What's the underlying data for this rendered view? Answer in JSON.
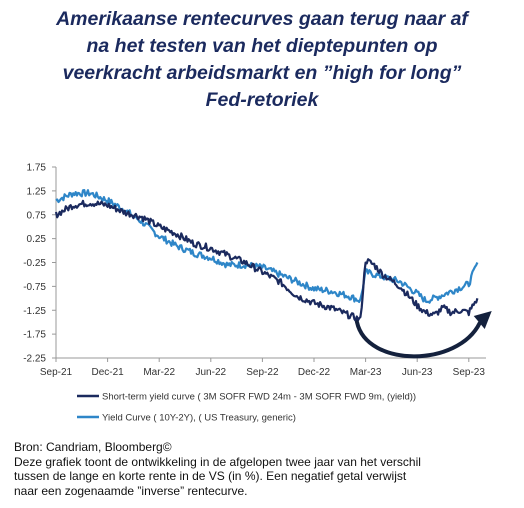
{
  "title_lines": [
    "Amerikaanse rentecurves gaan terug naar af",
    "na het testen van het dieptepunten op",
    "veerkracht arbeidsmarkt en ”high for long”",
    "Fed-retoriek"
  ],
  "footer": {
    "source": "Bron: Candriam, Bloomberg©",
    "lines": [
      "Deze grafiek toont de ontwikkeling in de afgelopen twee jaar van het verschil",
      "tussen de lange en korte rente in de VS (in %). Een negatief getal verwijst",
      "naar een zogenaamde ”inverse” rentecurve."
    ]
  },
  "colors": {
    "title": "#1b2a5e",
    "short_term": "#1b2a5e",
    "yield_curve": "#2e86c8",
    "arrow": "#14213d"
  },
  "chart_data": {
    "type": "line",
    "ylim": [
      -2.25,
      1.75
    ],
    "yticks": [
      "1.75",
      "1.25",
      "0.75",
      "0.25",
      "-0.25",
      "-0.75",
      "-1.25",
      "-1.75",
      "-2.25"
    ],
    "xticks": [
      "Sep-21",
      "Dec-21",
      "Mar-22",
      "Jun-22",
      "Sep-22",
      "Dec-22",
      "Mar-23",
      "Jun-23",
      "Sep-23"
    ],
    "x_months_range": [
      0,
      25
    ],
    "legend_position": "bottom",
    "grid": false,
    "annotation": "curved arrow from Mar-23 to Oct-23",
    "series": [
      {
        "name": "Short-term yield curve ( 3M SOFR FWD 24m - 3M SOFR FWD 9m, (yield))",
        "x": [
          0,
          1,
          2,
          3,
          4,
          5,
          6,
          7,
          8,
          9,
          10,
          11,
          12,
          13,
          14,
          15,
          16,
          17,
          17.7,
          18,
          18.5,
          19,
          20,
          21,
          21.5,
          22,
          22.5,
          23,
          23.5,
          24,
          24.5
        ],
        "y": [
          0.75,
          0.95,
          1.0,
          0.95,
          0.8,
          0.7,
          0.5,
          0.35,
          0.15,
          0.05,
          -0.1,
          -0.25,
          -0.45,
          -0.65,
          -0.95,
          -1.1,
          -1.2,
          -1.35,
          -1.45,
          -0.2,
          -0.3,
          -0.5,
          -0.75,
          -1.15,
          -1.3,
          -1.35,
          -1.2,
          -1.3,
          -1.25,
          -1.3,
          -1.0
        ]
      },
      {
        "name": "Yield Curve ( 10Y-2Y), ( US Treasury, generic)",
        "x": [
          0,
          1,
          2,
          3,
          4,
          5,
          6,
          7,
          8,
          9,
          10,
          11,
          12,
          13,
          14,
          15,
          16,
          17,
          17.7,
          18,
          19,
          20,
          21,
          21.5,
          22,
          23,
          24,
          24.5
        ],
        "y": [
          1.05,
          1.2,
          1.2,
          1.05,
          0.85,
          0.6,
          0.3,
          0.1,
          -0.05,
          -0.15,
          -0.3,
          -0.3,
          -0.35,
          -0.5,
          -0.65,
          -0.8,
          -0.85,
          -0.95,
          -1.05,
          -0.45,
          -0.55,
          -0.65,
          -0.9,
          -1.05,
          -1.0,
          -0.85,
          -0.7,
          -0.25
        ]
      }
    ]
  }
}
